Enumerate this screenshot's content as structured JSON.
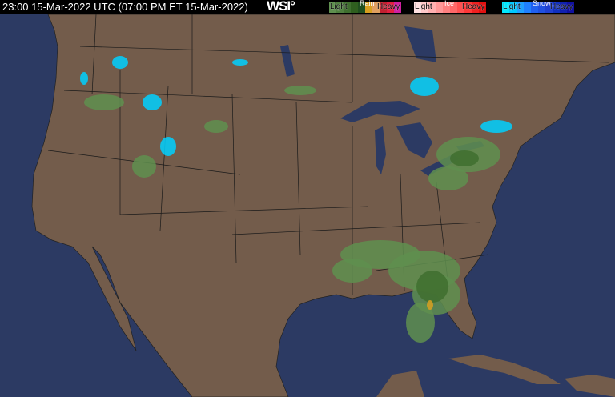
{
  "header": {
    "timestamp": "23:00 15-Mar-2022 UTC  (07:00 PM ET 15-Mar-2022)",
    "logo": "WSI°"
  },
  "legend": [
    {
      "title": "Rain",
      "light": "Light",
      "heavy": "Heavy",
      "colors": [
        "#5f8f4f",
        "#4f7f3f",
        "#3f6f2f",
        "#2f5f1f",
        "#1f4f1f",
        "#d8a020",
        "#e0a060",
        "#c02030",
        "#e02040",
        "#d020a0"
      ]
    },
    {
      "title": "Ice",
      "light": "Light",
      "heavy": "Heavy",
      "colors": [
        "#ffe0e0",
        "#ffc8c8",
        "#ffb0b0",
        "#ff9898",
        "#ff8080",
        "#ff6868",
        "#ff5050",
        "#ff3838",
        "#f02020",
        "#e01010"
      ]
    },
    {
      "title": "Snow",
      "light": "Light",
      "heavy": "Heavy",
      "colors": [
        "#00e8ff",
        "#00c8ff",
        "#20a0ff",
        "#2080ff",
        "#2060f0",
        "#2050e0",
        "#2040d0",
        "#1030c0",
        "#1020b0",
        "#1010a0"
      ]
    }
  ],
  "colors": {
    "ocean": "#2c3a63",
    "land": "#735c4b",
    "borders": "#1a1a1a",
    "lakes": "#2c3a63"
  }
}
